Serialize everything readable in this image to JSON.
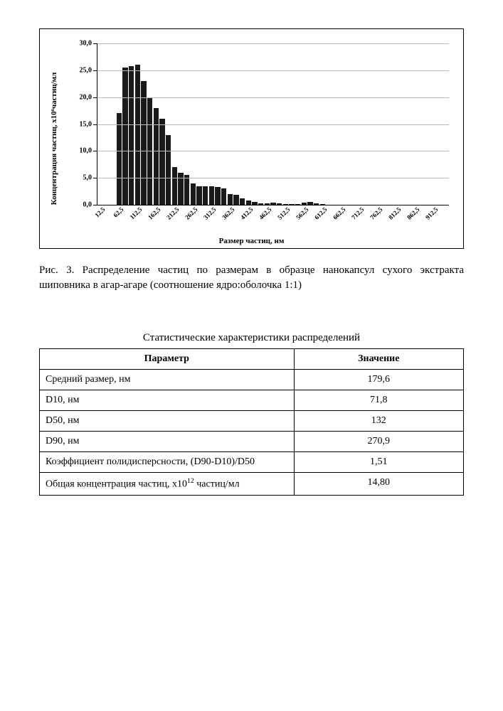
{
  "chart": {
    "type": "bar",
    "y_axis": {
      "title": "Концентрация частиц, x10⁶частиц/мл",
      "min": 0,
      "max": 30,
      "ticks": [
        "0,0",
        "5,0",
        "10,0",
        "15,0",
        "20,0",
        "25,0",
        "30,0"
      ],
      "tick_values": [
        0,
        5,
        10,
        15,
        20,
        25,
        30
      ],
      "label_fontsize": 10,
      "title_fontsize": 11,
      "grid_color": "#b8b8b8"
    },
    "x_axis": {
      "title": "Размер частиц, нм",
      "labels": [
        "12,5",
        "62,5",
        "112,5",
        "162,5",
        "212,5",
        "262,5",
        "312,5",
        "362,5",
        "412,5",
        "462,5",
        "512,5",
        "562,5",
        "612,5",
        "662,5",
        "712,5",
        "762,5",
        "812,5",
        "862,5",
        "912,5"
      ],
      "label_rotation_deg": -45,
      "label_fontsize": 9,
      "title_fontsize": 11
    },
    "bars": {
      "values": [
        0,
        0,
        0,
        17.0,
        25.5,
        25.8,
        26.0,
        23.0,
        20.0,
        18.0,
        16.0,
        13.0,
        7.0,
        6.0,
        5.5,
        4.0,
        3.5,
        3.5,
        3.5,
        3.3,
        3.0,
        2.0,
        1.8,
        1.2,
        0.8,
        0.5,
        0.3,
        0.3,
        0.4,
        0.3,
        0.2,
        0.2,
        0.2,
        0.4,
        0.5,
        0.3,
        0.2,
        0,
        0,
        0,
        0,
        0,
        0,
        0,
        0,
        0,
        0,
        0,
        0,
        0,
        0,
        0,
        0,
        0,
        0,
        0,
        0
      ],
      "count": 57,
      "x_label_stride": 3,
      "x_label_start_idx": 0,
      "color": "#1a1a1a",
      "bar_gap_ratio": 0.18
    },
    "background_color": "#ffffff",
    "border_color": "#000000"
  },
  "caption": {
    "prefix": "Рис. 3.",
    "text": "Распределение частиц по размерам в образце нанокапсул сухого экстракта шиповника  в агар-агаре (соотношение ядро:оболочка 1:1)"
  },
  "table": {
    "title": "Статистические характеристики распределений",
    "header_param": "Параметр",
    "header_value": "Значение",
    "rows": [
      {
        "param": "Средний размер, нм",
        "value": "179,6"
      },
      {
        "param": "D10, нм",
        "value": "71,8"
      },
      {
        "param": "D50, нм",
        "value": "132"
      },
      {
        "param": "D90, нм",
        "value": "270,9"
      },
      {
        "param": "Коэффициент полидисперсности, (D90-D10)/D50",
        "value": "1,51"
      },
      {
        "param_html": "Общая концентрация частиц, x10<sup>12</sup> частиц/мл",
        "param": "Общая концентрация частиц, x10^12 частиц/мл",
        "value": "14,80"
      }
    ]
  }
}
